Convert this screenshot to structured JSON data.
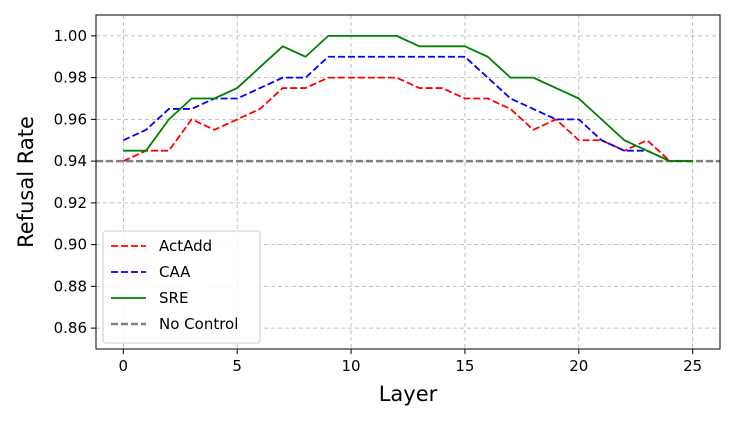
{
  "chart_data": {
    "type": "line",
    "title": "",
    "xlabel": "Layer",
    "ylabel": "Refusal Rate",
    "xlim": [
      -1.2,
      26.2
    ],
    "ylim": [
      0.85,
      1.01
    ],
    "xticks": [
      0,
      5,
      10,
      15,
      20,
      25
    ],
    "xtick_labels": [
      "0",
      "5",
      "10",
      "15",
      "20",
      "25"
    ],
    "yticks": [
      0.86,
      0.88,
      0.9,
      0.92,
      0.94,
      0.96,
      0.98,
      1.0
    ],
    "ytick_labels": [
      "0.86",
      "0.88",
      "0.90",
      "0.92",
      "0.94",
      "0.96",
      "0.98",
      "1.00"
    ],
    "grid": true,
    "legend_position": "lower-left",
    "x": [
      0,
      1,
      2,
      3,
      4,
      5,
      6,
      7,
      8,
      9,
      10,
      11,
      12,
      13,
      14,
      15,
      16,
      17,
      18,
      19,
      20,
      21,
      22,
      23,
      24,
      25
    ],
    "series": [
      {
        "name": "ActAdd",
        "color": "#ff0000",
        "style": "dashed",
        "values": [
          0.94,
          0.945,
          0.945,
          0.96,
          0.955,
          0.96,
          0.965,
          0.975,
          0.975,
          0.98,
          0.98,
          0.98,
          0.98,
          0.975,
          0.975,
          0.97,
          0.97,
          0.965,
          0.955,
          0.96,
          0.95,
          0.95,
          0.945,
          0.95,
          0.94,
          0.94
        ]
      },
      {
        "name": "CAA",
        "color": "#0000ff",
        "style": "dashed",
        "values": [
          0.95,
          0.955,
          0.965,
          0.965,
          0.97,
          0.97,
          0.975,
          0.98,
          0.98,
          0.99,
          0.99,
          0.99,
          0.99,
          0.99,
          0.99,
          0.99,
          0.98,
          0.97,
          0.965,
          0.96,
          0.96,
          0.95,
          0.945,
          0.945,
          0.94,
          0.94
        ]
      },
      {
        "name": "SRE",
        "color": "#008000",
        "style": "solid",
        "values": [
          0.945,
          0.945,
          0.96,
          0.97,
          0.97,
          0.975,
          0.985,
          0.995,
          0.99,
          1.0,
          1.0,
          1.0,
          1.0,
          0.995,
          0.995,
          0.995,
          0.99,
          0.98,
          0.98,
          0.975,
          0.97,
          0.96,
          0.95,
          0.945,
          0.94,
          0.94
        ]
      }
    ],
    "reference_lines": [
      {
        "name": "No Control",
        "y": 0.94,
        "color": "#808080",
        "style": "dashed"
      }
    ]
  }
}
